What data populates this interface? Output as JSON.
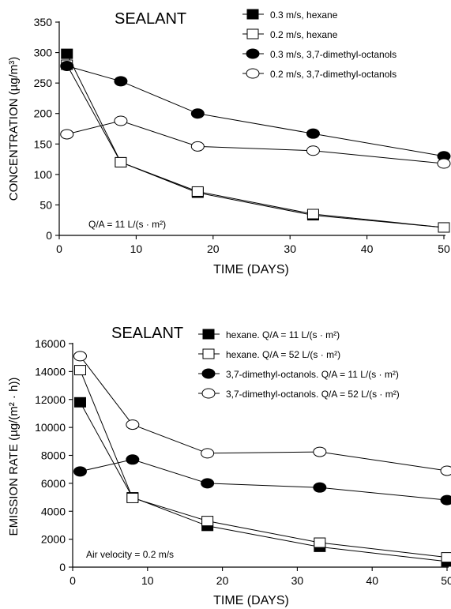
{
  "chart_data": [
    {
      "type": "line",
      "title": "SEALANT",
      "xlabel": "TIME (DAYS)",
      "ylabel": "CONCENTRATION (µg/m³)",
      "annotation": "Q/A = 11 L/(s · m²)",
      "xlim": [
        0,
        50
      ],
      "ylim": [
        0,
        350
      ],
      "x_ticks": [
        0,
        10,
        20,
        30,
        40,
        50
      ],
      "y_ticks": [
        0,
        50,
        100,
        150,
        200,
        250,
        300,
        350
      ],
      "grid": false,
      "legend_position": "top-right",
      "series": [
        {
          "name": "0.3 m/s, hexane",
          "marker": "square-filled",
          "x": [
            1,
            8,
            18,
            33,
            50
          ],
          "y": [
            298,
            120,
            70,
            33,
            13
          ]
        },
        {
          "name": "0.2 m/s, hexane",
          "marker": "square-open",
          "x": [
            1,
            8,
            18,
            33,
            50
          ],
          "y": [
            280,
            120,
            72,
            35,
            13
          ]
        },
        {
          "name": "0.3 m/s, 3,7-dimethyl-octanols",
          "marker": "circle-filled",
          "x": [
            1,
            8,
            18,
            33,
            50
          ],
          "y": [
            278,
            253,
            200,
            167,
            130
          ]
        },
        {
          "name": "0.2 m/s, 3,7-dimethyl-octanols",
          "marker": "circle-open",
          "x": [
            1,
            8,
            18,
            33,
            50
          ],
          "y": [
            166,
            188,
            146,
            139,
            118
          ]
        }
      ]
    },
    {
      "type": "line",
      "title": "SEALANT",
      "xlabel": "TIME (DAYS)",
      "ylabel": "EMISSION RATE (µg/(m² · h))",
      "annotation": "Air velocity = 0.2 m/s",
      "xlim": [
        0,
        50
      ],
      "ylim": [
        0,
        16000
      ],
      "x_ticks": [
        0,
        10,
        20,
        30,
        40,
        50
      ],
      "y_ticks": [
        0,
        2000,
        4000,
        6000,
        8000,
        10000,
        12000,
        14000,
        16000
      ],
      "grid": false,
      "legend_position": "top-right",
      "series": [
        {
          "name": "hexane. Q/A = 11 L/(s · m²)",
          "marker": "square-filled",
          "x": [
            1,
            8,
            18,
            33,
            50
          ],
          "y": [
            11800,
            5000,
            2950,
            1450,
            400
          ]
        },
        {
          "name": "hexane. Q/A = 52 L/(s · m²)",
          "marker": "square-open",
          "x": [
            1,
            8,
            18,
            33,
            50
          ],
          "y": [
            14100,
            4950,
            3300,
            1750,
            700
          ]
        },
        {
          "name": "3,7-dimethyl-octanols. Q/A = 11 L/(s · m²)",
          "marker": "circle-filled",
          "x": [
            1,
            8,
            18,
            33,
            50
          ],
          "y": [
            6850,
            7700,
            6000,
            5700,
            4800
          ]
        },
        {
          "name": "3,7-dimethyl-octanols. Q/A = 52 L/(s · m²)",
          "marker": "circle-open",
          "x": [
            1,
            8,
            18,
            33,
            50
          ],
          "y": [
            15100,
            10200,
            8150,
            8250,
            6900
          ]
        }
      ]
    }
  ]
}
